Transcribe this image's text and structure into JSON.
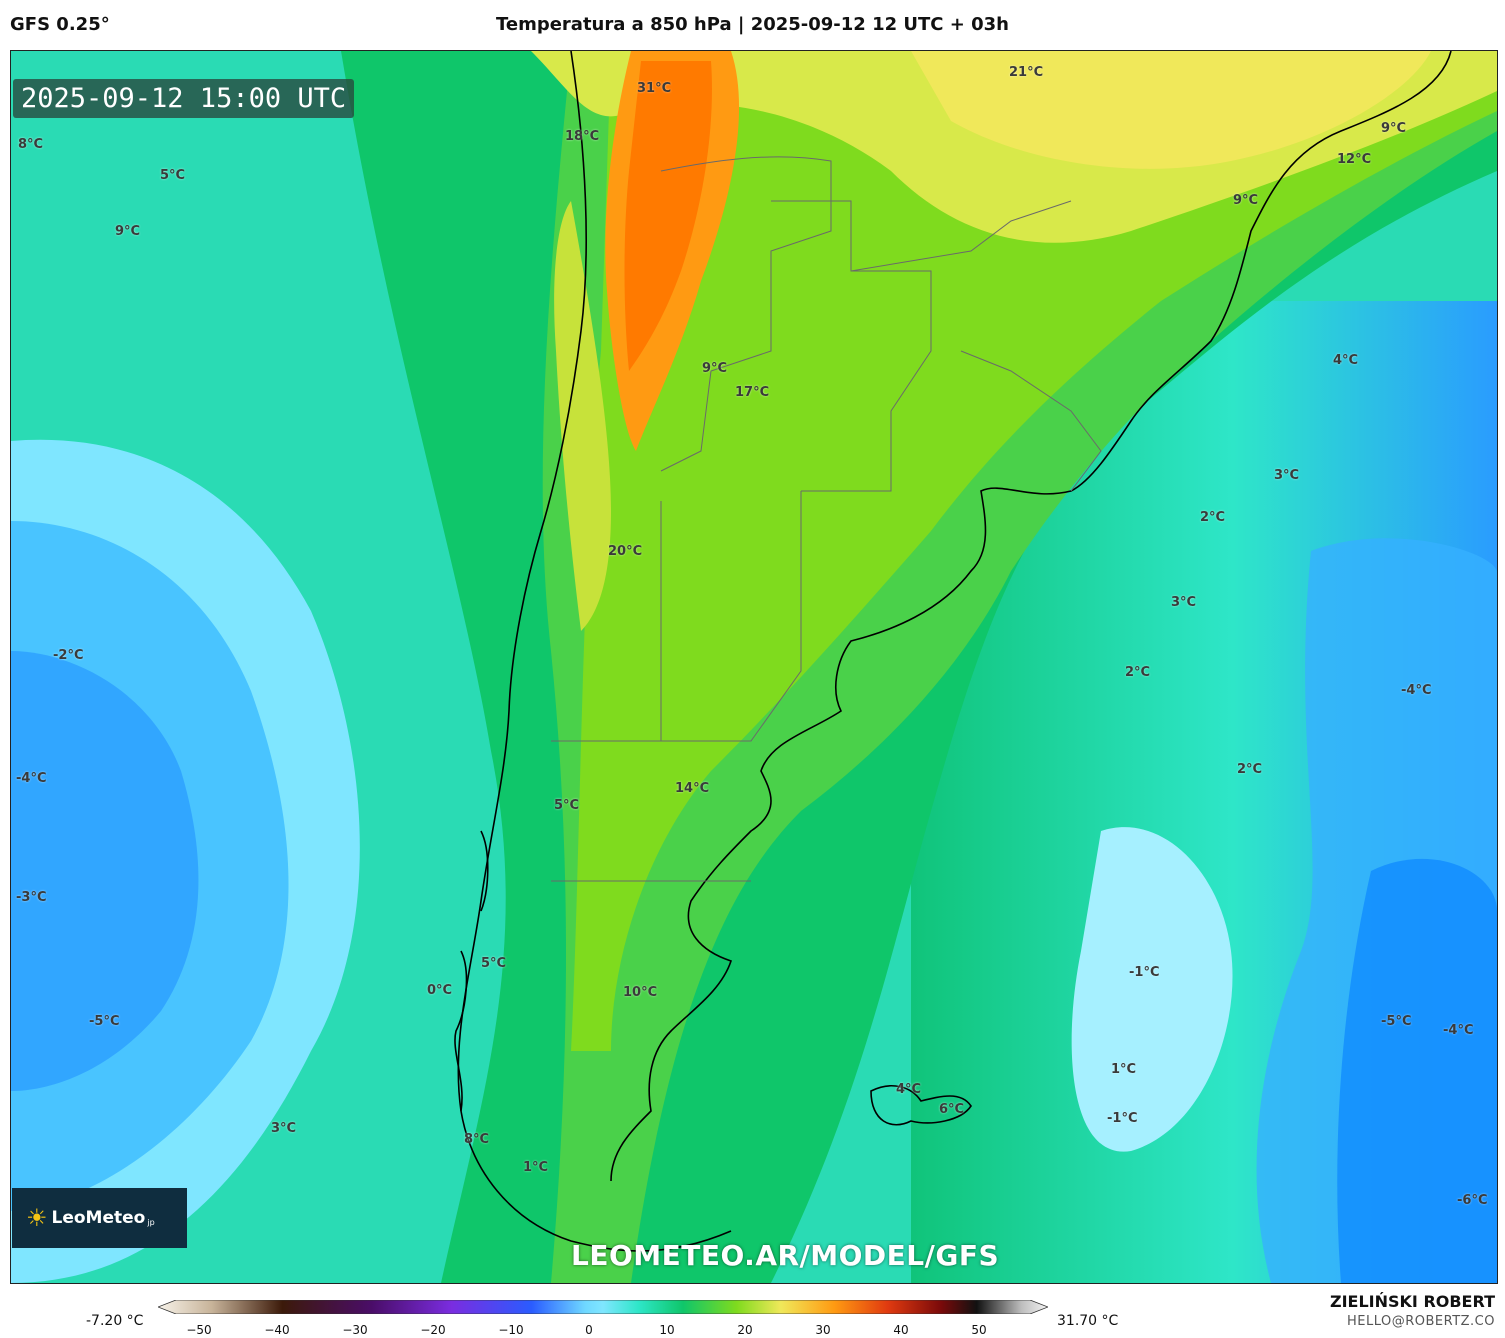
{
  "header": {
    "model": "GFS 0.25°",
    "title": "Temperatura a 850 hPa | 2025-09-12 12 UTC + 03h"
  },
  "map": {
    "timestamp": "2025-09-12 15:00 UTC",
    "labels": [
      "21°C",
      "31°C",
      "18°C",
      "8°C",
      "5°C",
      "9°C",
      "9°C",
      "12°C",
      "9°C",
      "4°C",
      "9°C",
      "17°C",
      "3°C",
      "2°C",
      "20°C",
      "3°C",
      "-2°C",
      "2°C",
      "-4°C",
      "-4°C",
      "14°C",
      "2°C",
      "5°C",
      "-3°C",
      "5°C",
      "-1°C",
      "0°C",
      "10°C",
      "-5°C",
      "-5°C",
      "-4°C",
      "1°C",
      "4°C",
      "6°C",
      "-1°C",
      "3°C",
      "8°C",
      "1°C",
      "-6°C"
    ],
    "watermark": "LEOMETEO.AR/MODEL/GFS",
    "logo": {
      "text": "LeoMeteo",
      "suffix": "jp"
    }
  },
  "colorbar": {
    "min_label": "-7.20 °C",
    "max_label": "31.70 °C",
    "ticks": [
      "−50",
      "−40",
      "−30",
      "−20",
      "−10",
      "0",
      "10",
      "20",
      "30",
      "40",
      "50"
    ]
  },
  "credits": {
    "author": "ZIELIŃSKI ROBERT",
    "email": "HELLO@ROBERTZ.CO"
  }
}
